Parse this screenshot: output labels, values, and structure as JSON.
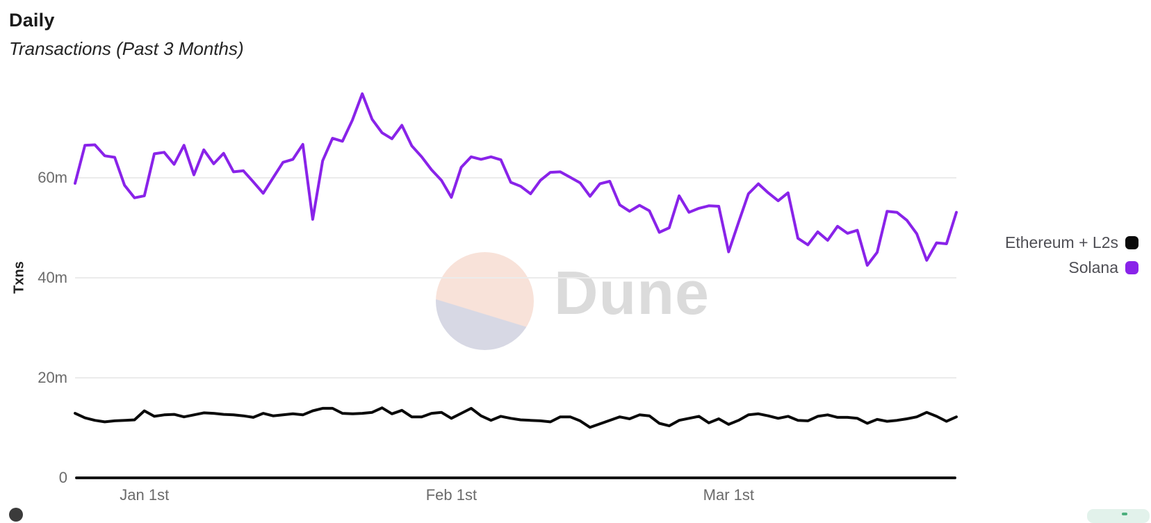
{
  "header": {
    "title": "Daily",
    "subtitle": "Transactions (Past 3 Months)"
  },
  "watermark": {
    "brand": "Dune",
    "circle_top_color": "#F8E2D9",
    "circle_bottom_color": "#D7D8E4",
    "text_color": "#DBDBDB"
  },
  "legend": {
    "items": [
      {
        "label": "Ethereum + L2s",
        "color": "#0a0a0a"
      },
      {
        "label": "Solana",
        "color": "#8923E9"
      }
    ]
  },
  "colors": {
    "grid": "#ebebeb",
    "axis": "#141414",
    "tick_text": "#6b6b6b"
  },
  "partial_button": {
    "color": "#e2f2eb"
  },
  "chart_data": {
    "type": "line",
    "title": "Daily",
    "subtitle": "Transactions (Past 3 Months)",
    "ylabel": "Txns",
    "unit": "millions of transactions",
    "ylim": [
      0,
      80
    ],
    "grid": "horizontal",
    "legend_position": "right",
    "y_ticks": [
      {
        "label": "0",
        "value": 0
      },
      {
        "label": "20m",
        "value": 20
      },
      {
        "label": "40m",
        "value": 40
      },
      {
        "label": "60m",
        "value": 60
      }
    ],
    "x_ticks": [
      {
        "label": "Jan 1st",
        "index": 7
      },
      {
        "label": "Feb 1st",
        "index": 38
      },
      {
        "label": "Mar 1st",
        "index": 66
      }
    ],
    "x": [
      "Dec 25",
      "Dec 26",
      "Dec 27",
      "Dec 28",
      "Dec 29",
      "Dec 30",
      "Dec 31",
      "Jan 1",
      "Jan 2",
      "Jan 3",
      "Jan 4",
      "Jan 5",
      "Jan 6",
      "Jan 7",
      "Jan 8",
      "Jan 9",
      "Jan 10",
      "Jan 11",
      "Jan 12",
      "Jan 13",
      "Jan 14",
      "Jan 15",
      "Jan 16",
      "Jan 17",
      "Jan 18",
      "Jan 19",
      "Jan 20",
      "Jan 21",
      "Jan 22",
      "Jan 23",
      "Jan 24",
      "Jan 25",
      "Jan 26",
      "Jan 27",
      "Jan 28",
      "Jan 29",
      "Jan 30",
      "Jan 31",
      "Feb 1",
      "Feb 2",
      "Feb 3",
      "Feb 4",
      "Feb 5",
      "Feb 6",
      "Feb 7",
      "Feb 8",
      "Feb 9",
      "Feb 10",
      "Feb 11",
      "Feb 12",
      "Feb 13",
      "Feb 14",
      "Feb 15",
      "Feb 16",
      "Feb 17",
      "Feb 18",
      "Feb 19",
      "Feb 20",
      "Feb 21",
      "Feb 22",
      "Feb 23",
      "Feb 24",
      "Feb 25",
      "Feb 26",
      "Feb 27",
      "Feb 28",
      "Mar 1",
      "Mar 2",
      "Mar 3",
      "Mar 4",
      "Mar 5",
      "Mar 6",
      "Mar 7",
      "Mar 8",
      "Mar 9",
      "Mar 10",
      "Mar 11",
      "Mar 12",
      "Mar 13",
      "Mar 14",
      "Mar 15",
      "Mar 16",
      "Mar 17",
      "Mar 18",
      "Mar 19",
      "Mar 20",
      "Mar 21",
      "Mar 22",
      "Mar 23",
      "Mar 24"
    ],
    "series": [
      {
        "name": "Ethereum + L2s",
        "color": "#0a0a0a",
        "values": [
          12.9,
          12.0,
          11.5,
          11.2,
          11.4,
          11.5,
          11.6,
          13.4,
          12.3,
          12.6,
          12.7,
          12.2,
          12.6,
          13.0,
          12.9,
          12.7,
          12.6,
          12.4,
          12.1,
          12.9,
          12.4,
          12.6,
          12.8,
          12.6,
          13.4,
          13.9,
          13.9,
          12.9,
          12.8,
          12.9,
          13.1,
          14.0,
          12.8,
          13.5,
          12.2,
          12.2,
          12.9,
          13.1,
          11.9,
          12.9,
          13.9,
          12.4,
          11.5,
          12.3,
          11.9,
          11.6,
          11.5,
          11.4,
          11.2,
          12.2,
          12.2,
          11.4,
          10.1,
          10.8,
          11.5,
          12.2,
          11.8,
          12.6,
          12.4,
          10.9,
          10.4,
          11.5,
          11.9,
          12.3,
          11.0,
          11.8,
          10.7,
          11.5,
          12.6,
          12.8,
          12.4,
          11.9,
          12.3,
          11.5,
          11.4,
          12.3,
          12.6,
          12.1,
          12.1,
          11.9,
          10.9,
          11.7,
          11.3,
          11.5,
          11.8,
          12.2,
          13.1,
          12.3,
          11.3,
          12.2
        ]
      },
      {
        "name": "Solana",
        "color": "#8923E9",
        "values": [
          58.9,
          66.5,
          66.6,
          64.4,
          64.1,
          58.5,
          56.0,
          56.4,
          64.8,
          65.1,
          62.7,
          66.5,
          60.6,
          65.6,
          62.8,
          64.9,
          61.2,
          61.4,
          59.2,
          56.9,
          60.0,
          63.1,
          63.7,
          66.7,
          51.7,
          63.4,
          67.9,
          67.3,
          71.5,
          76.8,
          71.7,
          69.0,
          67.8,
          70.5,
          66.4,
          64.2,
          61.6,
          59.5,
          56.1,
          62.1,
          64.2,
          63.7,
          64.2,
          63.6,
          59.1,
          58.3,
          56.8,
          59.5,
          61.1,
          61.2,
          60.1,
          59.0,
          56.3,
          58.8,
          59.3,
          54.6,
          53.3,
          54.5,
          53.4,
          49.1,
          50.0,
          56.4,
          53.1,
          53.9,
          54.4,
          54.3,
          45.2,
          51.1,
          56.8,
          58.8,
          57.0,
          55.4,
          57.0,
          47.9,
          46.6,
          49.2,
          47.5,
          50.3,
          48.9,
          49.5,
          42.5,
          45.1,
          53.3,
          53.1,
          51.5,
          48.8,
          43.5,
          47.0,
          46.8,
          53.1
        ]
      }
    ]
  }
}
